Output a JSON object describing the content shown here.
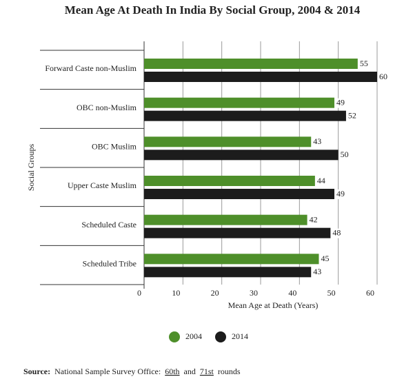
{
  "chart_data": {
    "type": "barh",
    "title": "Mean Age At Death In India By Social Group, 2004 & 2014",
    "categories": [
      "Forward Caste non-Muslim",
      "OBC non-Muslim",
      "OBC Muslim",
      "Upper Caste Muslim",
      "Scheduled Caste",
      "Scheduled Tribe"
    ],
    "series": [
      {
        "name": "2004",
        "color": "#4e8f2a",
        "values": [
          55,
          49,
          43,
          44,
          42,
          45
        ]
      },
      {
        "name": "2014",
        "color": "#1c1c1c",
        "values": [
          60,
          52,
          50,
          49,
          48,
          43
        ]
      }
    ],
    "xlim": [
      0,
      60
    ],
    "xticks": [
      0,
      10,
      20,
      30,
      40,
      50,
      60
    ],
    "xlabel": "Mean Age at Death (Years)",
    "ylabel": "Social Groups",
    "grid": true,
    "source": {
      "label": "Source:",
      "text": "National Sample Survey Office:",
      "link1": "60th",
      "and": "and",
      "link2": "71st",
      "tail": "rounds"
    }
  }
}
